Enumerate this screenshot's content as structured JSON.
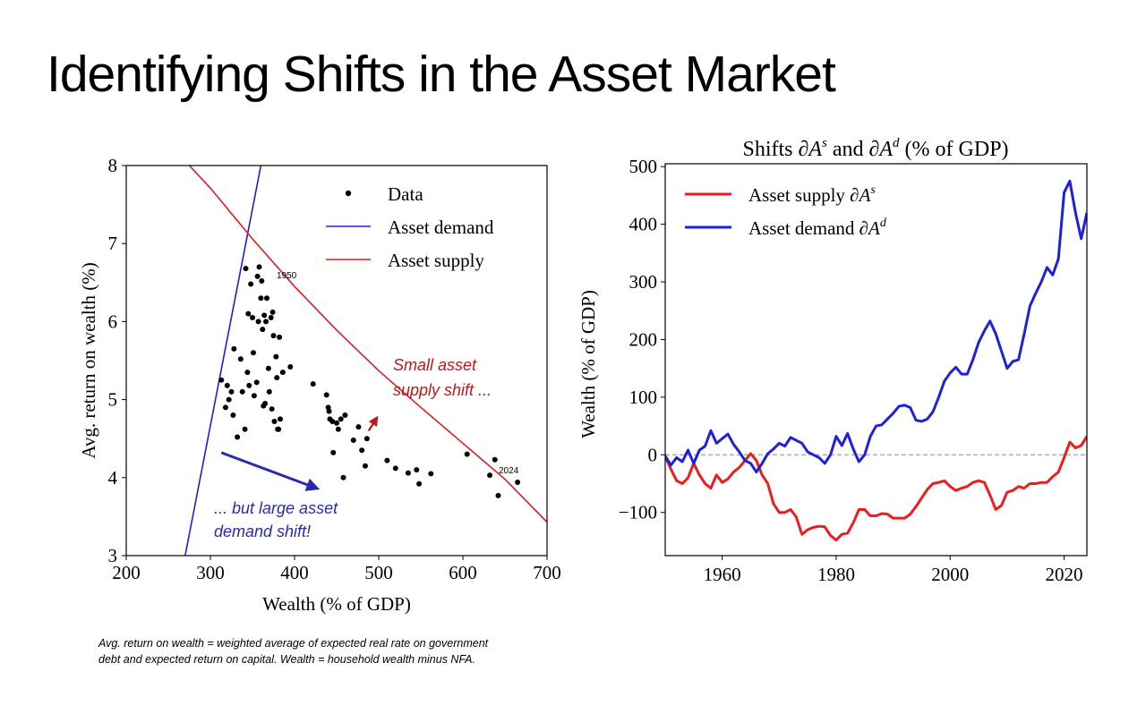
{
  "slide": {
    "title": "Identifying Shifts in the Asset Market",
    "footnote_line1": "Avg. return on wealth = weighted average of expected real rate on government",
    "footnote_line2": "debt and expected return on capital. Wealth = household wealth minus NFA."
  },
  "chart_data": [
    {
      "type": "scatter",
      "xlabel": "Wealth (% of GDP)",
      "ylabel": "Avg. return on wealth (%)",
      "xlim": [
        200,
        700
      ],
      "ylim": [
        3,
        8
      ],
      "xticks": [
        "200",
        "300",
        "400",
        "500",
        "600",
        "700"
      ],
      "yticks": [
        "3",
        "4",
        "5",
        "6",
        "7",
        "8"
      ],
      "grid": false,
      "legend_position": "top-right",
      "legend": {
        "data": "Data",
        "demand": "Asset demand",
        "supply": "Asset supply"
      },
      "colors": {
        "data": "#000000",
        "demand": "#1f1fd6",
        "supply": "#e41a1c",
        "annot_red": "#c0161b",
        "annot_blue": "#2a2ab0"
      },
      "annotations": {
        "label_1950": "1950",
        "label_2024": "2024",
        "supply_shift_line1": "Small asset",
        "supply_shift_line2": "supply shift ...",
        "demand_shift_line1": "... but large asset",
        "demand_shift_line2": "demand shift!"
      },
      "series": [
        {
          "name": "Data",
          "points": [
            [
              313,
              5.25
            ],
            [
              318,
              4.9
            ],
            [
              320,
              5.18
            ],
            [
              322,
              5.0
            ],
            [
              325,
              5.1
            ],
            [
              327,
              4.8
            ],
            [
              328,
              5.65
            ],
            [
              332,
              4.52
            ],
            [
              336,
              5.52
            ],
            [
              338,
              5.1
            ],
            [
              341,
              4.62
            ],
            [
              342,
              6.68
            ],
            [
              344,
              5.35
            ],
            [
              345,
              6.1
            ],
            [
              346,
              5.18
            ],
            [
              348,
              6.48
            ],
            [
              350,
              6.05
            ],
            [
              351,
              5.6
            ],
            [
              352,
              5.05
            ],
            [
              355,
              5.22
            ],
            [
              356,
              6.58
            ],
            [
              357,
              6.0
            ],
            [
              358,
              6.7
            ],
            [
              360,
              6.3
            ],
            [
              361,
              6.52
            ],
            [
              362,
              5.9
            ],
            [
              363,
              4.92
            ],
            [
              364,
              6.08
            ],
            [
              365,
              4.95
            ],
            [
              366,
              6.0
            ],
            [
              367,
              6.3
            ],
            [
              369,
              5.4
            ],
            [
              370,
              5.1
            ],
            [
              372,
              6.05
            ],
            [
              373,
              4.88
            ],
            [
              374,
              6.12
            ],
            [
              375,
              5.82
            ],
            [
              376,
              4.72
            ],
            [
              378,
              5.55
            ],
            [
              379,
              5.28
            ],
            [
              380,
              4.62
            ],
            [
              381,
              4.62
            ],
            [
              382,
              5.8
            ],
            [
              383,
              4.75
            ],
            [
              386,
              5.35
            ],
            [
              395,
              5.42
            ],
            [
              422,
              5.2
            ],
            [
              438,
              5.06
            ],
            [
              440,
              4.9
            ],
            [
              441,
              4.85
            ],
            [
              442,
              4.75
            ],
            [
              445,
              4.72
            ],
            [
              446,
              4.32
            ],
            [
              450,
              4.7
            ],
            [
              452,
              4.62
            ],
            [
              455,
              4.75
            ],
            [
              458,
              4.0
            ],
            [
              460,
              4.8
            ],
            [
              470,
              4.48
            ],
            [
              476,
              4.65
            ],
            [
              480,
              4.35
            ],
            [
              484,
              4.15
            ],
            [
              486,
              4.5
            ],
            [
              510,
              4.22
            ],
            [
              520,
              4.12
            ],
            [
              535,
              4.06
            ],
            [
              545,
              4.1
            ],
            [
              548,
              3.92
            ],
            [
              562,
              4.05
            ],
            [
              605,
              4.3
            ],
            [
              632,
              4.03
            ],
            [
              638,
              4.23
            ],
            [
              642,
              3.77
            ],
            [
              665,
              3.94
            ]
          ]
        },
        {
          "name": "Asset demand",
          "line": [
            [
              270,
              3.0
            ],
            [
              360,
              8.0
            ]
          ]
        },
        {
          "name": "Asset supply",
          "points_note": "",
          "line": [
            [
              275,
              8.0
            ],
            [
              300,
              7.71
            ],
            [
              350,
              7.06
            ],
            [
              400,
              6.45
            ],
            [
              450,
              5.89
            ],
            [
              500,
              5.37
            ],
            [
              550,
              4.9
            ],
            [
              600,
              4.44
            ],
            [
              650,
              3.98
            ],
            [
              700,
              3.43
            ]
          ]
        }
      ],
      "arrows": {
        "supply_arrow": [
          [
            488,
            4.6
          ],
          [
            498,
            4.77
          ]
        ],
        "demand_arrow": [
          [
            313,
            4.32
          ],
          [
            427,
            3.86
          ]
        ]
      }
    },
    {
      "type": "line",
      "title": "Shifts ∂A^s and ∂A^d (% of GDP)",
      "title_parts": {
        "a": "Shifts ∂",
        "b": "A",
        "c": "s",
        "d": " and ∂",
        "e": "A",
        "f": "d",
        "g": " (% of GDP)"
      },
      "xlabel": "",
      "ylabel": "Wealth (% of GDP)",
      "xlim": [
        1950,
        2024
      ],
      "ylim": [
        -175,
        505
      ],
      "xticks": [
        "1960",
        "1980",
        "2000",
        "2020"
      ],
      "yticks": [
        "−100",
        "0",
        "100",
        "200",
        "300",
        "400",
        "500"
      ],
      "grid": false,
      "zero_line": true,
      "legend_position": "top-left",
      "legend": {
        "supply_text": "Asset supply ∂",
        "supply_sym": "A",
        "supply_sup": "s",
        "demand_text": "Asset demand ∂",
        "demand_sym": "A",
        "demand_sup": "d"
      },
      "series": [
        {
          "name": "Asset supply ∂A^s",
          "color": "#ee1c1c",
          "x": [
            1950,
            1951,
            1952,
            1953,
            1954,
            1955,
            1956,
            1957,
            1958,
            1959,
            1960,
            1961,
            1962,
            1963,
            1964,
            1965,
            1966,
            1967,
            1968,
            1969,
            1970,
            1971,
            1972,
            1973,
            1974,
            1975,
            1976,
            1977,
            1978,
            1979,
            1980,
            1981,
            1982,
            1983,
            1984,
            1985,
            1986,
            1987,
            1988,
            1989,
            1990,
            1991,
            1992,
            1993,
            1994,
            1995,
            1996,
            1997,
            1998,
            1999,
            2000,
            2001,
            2002,
            2003,
            2004,
            2005,
            2006,
            2007,
            2008,
            2009,
            2010,
            2011,
            2012,
            2013,
            2014,
            2015,
            2016,
            2017,
            2018,
            2019,
            2020,
            2021,
            2022,
            2023,
            2024
          ],
          "values": [
            -3,
            -25,
            -45,
            -50,
            -40,
            -15,
            -35,
            -50,
            -58,
            -35,
            -48,
            -42,
            -30,
            -22,
            -10,
            2,
            -10,
            -35,
            -50,
            -85,
            -100,
            -100,
            -95,
            -108,
            -138,
            -130,
            -126,
            -124,
            -125,
            -140,
            -148,
            -138,
            -136,
            -118,
            -95,
            -95,
            -106,
            -106,
            -102,
            -103,
            -110,
            -110,
            -110,
            -103,
            -90,
            -75,
            -60,
            -50,
            -48,
            -45,
            -55,
            -62,
            -58,
            -55,
            -48,
            -45,
            -48,
            -70,
            -95,
            -88,
            -65,
            -62,
            -55,
            -58,
            -50,
            -50,
            -48,
            -48,
            -38,
            -30,
            -5,
            22,
            12,
            16,
            32
          ]
        },
        {
          "name": "Asset demand ∂A^d",
          "color": "#1f1fe0",
          "x": [
            1950,
            1951,
            1952,
            1953,
            1954,
            1955,
            1956,
            1957,
            1958,
            1959,
            1960,
            1961,
            1962,
            1963,
            1964,
            1965,
            1966,
            1967,
            1968,
            1969,
            1970,
            1971,
            1972,
            1973,
            1974,
            1975,
            1976,
            1977,
            1978,
            1979,
            1980,
            1981,
            1982,
            1983,
            1984,
            1985,
            1986,
            1987,
            1988,
            1989,
            1990,
            1991,
            1992,
            1993,
            1994,
            1995,
            1996,
            1997,
            1998,
            1999,
            2000,
            2001,
            2002,
            2003,
            2004,
            2005,
            2006,
            2007,
            2008,
            2009,
            2010,
            2011,
            2012,
            2013,
            2014,
            2015,
            2016,
            2017,
            2018,
            2019,
            2020,
            2021,
            2022,
            2023,
            2024
          ],
          "values": [
            -2,
            -18,
            -5,
            -12,
            8,
            -15,
            8,
            15,
            42,
            20,
            28,
            36,
            18,
            5,
            -10,
            -15,
            -30,
            -15,
            2,
            10,
            20,
            15,
            30,
            25,
            20,
            5,
            0,
            -5,
            -15,
            0,
            32,
            16,
            37,
            10,
            -12,
            0,
            32,
            50,
            52,
            62,
            72,
            84,
            86,
            82,
            60,
            58,
            62,
            75,
            100,
            128,
            142,
            152,
            140,
            140,
            165,
            195,
            215,
            232,
            210,
            180,
            150,
            162,
            165,
            210,
            258,
            280,
            300,
            325,
            312,
            340,
            455,
            475,
            420,
            375,
            420
          ]
        }
      ]
    }
  ]
}
